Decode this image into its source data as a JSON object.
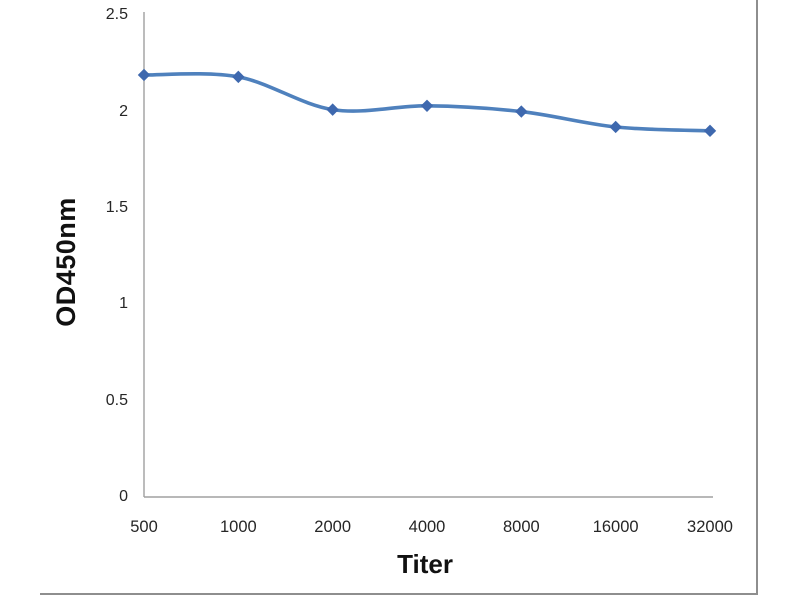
{
  "chart_data": {
    "type": "line",
    "title": "",
    "xlabel": "Titer",
    "ylabel": "OD450nm",
    "categories": [
      "500",
      "1000",
      "2000",
      "4000",
      "8000",
      "16000",
      "32000"
    ],
    "series": [
      {
        "name": "OD450nm",
        "values": [
          2.19,
          2.18,
          2.01,
          2.03,
          2.0,
          1.92,
          1.9
        ]
      }
    ],
    "ylim": [
      0,
      2.5
    ],
    "yticks": [
      0,
      0.5,
      1,
      1.5,
      2,
      2.5
    ],
    "ytick_labels": [
      "0",
      "0.5",
      "1",
      "1.5",
      "2",
      "2.5"
    ],
    "grid": false,
    "legend": "none",
    "marker": "diamond",
    "smooth": true,
    "colors": {
      "line": "#4f81bd",
      "marker": "#3e68ae",
      "axis": "#a0a0a0",
      "tick_text": "#262626",
      "axis_title_text": "#111111",
      "frame_border": "#8e8e8e",
      "background": "#ffffff"
    }
  }
}
